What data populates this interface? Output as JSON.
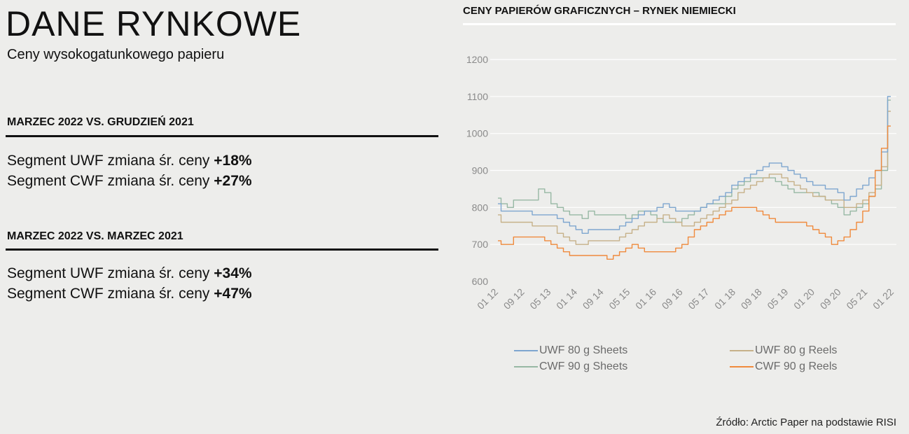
{
  "header": {
    "title": "DANE RYNKOWE",
    "subtitle": "Ceny wysokogatunkowego papieru"
  },
  "sections": [
    {
      "heading": "MARZEC 2022 VS. GRUDZIEŃ 2021",
      "stats": [
        {
          "label": "Segment UWF zmiana śr. ceny ",
          "value": "+18%"
        },
        {
          "label": "Segment CWF zmiana śr. ceny ",
          "value": "+27%"
        }
      ]
    },
    {
      "heading": "MARZEC 2022 VS. MARZEC 2021",
      "stats": [
        {
          "label": "Segment UWF zmiana śr. ceny ",
          "value": "+34%"
        },
        {
          "label": "Segment CWF zmiana śr. ceny ",
          "value": "+47%"
        }
      ]
    }
  ],
  "source": "Źródło: Arctic Paper na podstawie RISI",
  "chart_data": {
    "type": "line",
    "title": "CENY PAPIERÓW GRAFICZNYCH – RYNEK NIEMIECKI",
    "xlabel": "",
    "ylabel": "",
    "ylim": [
      600,
      1200
    ],
    "yticks": [
      600,
      700,
      800,
      900,
      1000,
      1100,
      1200
    ],
    "xticks": [
      "01 12",
      "09 12",
      "05 13",
      "01 14",
      "09 14",
      "05 15",
      "01 16",
      "09 16",
      "05 17",
      "01 18",
      "09 18",
      "05 19",
      "01 20",
      "09 20",
      "05 21",
      "01 22"
    ],
    "grid": "horizontal",
    "legend_position": "bottom",
    "series": [
      {
        "name": "UWF 80 g Sheets",
        "color": "#7ea6cf",
        "values": [
          810,
          790,
          790,
          790,
          790,
          790,
          780,
          780,
          780,
          780,
          770,
          760,
          750,
          740,
          730,
          740,
          740,
          740,
          740,
          740,
          750,
          760,
          770,
          780,
          790,
          790,
          800,
          810,
          800,
          790,
          790,
          790,
          790,
          800,
          810,
          820,
          830,
          840,
          860,
          870,
          880,
          890,
          900,
          910,
          920,
          920,
          910,
          900,
          890,
          880,
          870,
          860,
          860,
          850,
          850,
          840,
          820,
          830,
          850,
          860,
          880,
          900,
          950,
          1100
        ]
      },
      {
        "name": "UWF 80 g Reels",
        "color": "#c6b189",
        "values": [
          780,
          760,
          760,
          760,
          760,
          760,
          750,
          750,
          750,
          750,
          730,
          720,
          710,
          700,
          700,
          710,
          710,
          710,
          710,
          710,
          720,
          730,
          740,
          750,
          760,
          760,
          770,
          780,
          770,
          760,
          750,
          750,
          760,
          770,
          780,
          790,
          800,
          810,
          820,
          840,
          850,
          860,
          870,
          880,
          890,
          890,
          880,
          870,
          860,
          850,
          840,
          830,
          830,
          820,
          820,
          820,
          800,
          800,
          810,
          820,
          840,
          860,
          910,
          1060
        ]
      },
      {
        "name": "CWF 90 g Sheets",
        "color": "#97b8a4",
        "values": [
          825,
          810,
          800,
          820,
          820,
          820,
          820,
          850,
          840,
          810,
          800,
          790,
          780,
          780,
          770,
          790,
          780,
          780,
          780,
          780,
          780,
          770,
          780,
          790,
          790,
          780,
          770,
          760,
          760,
          760,
          770,
          780,
          790,
          800,
          810,
          810,
          810,
          830,
          850,
          860,
          870,
          880,
          880,
          880,
          880,
          870,
          860,
          850,
          840,
          840,
          840,
          840,
          830,
          820,
          810,
          800,
          780,
          790,
          800,
          810,
          830,
          850,
          900,
          1090
        ]
      },
      {
        "name": "CWF 90 g Reels",
        "color": "#f08a3c",
        "values": [
          710,
          700,
          700,
          720,
          720,
          720,
          720,
          720,
          710,
          700,
          690,
          680,
          670,
          670,
          670,
          670,
          670,
          670,
          660,
          670,
          680,
          690,
          700,
          690,
          680,
          680,
          680,
          680,
          680,
          690,
          700,
          720,
          740,
          750,
          760,
          770,
          780,
          790,
          800,
          800,
          800,
          800,
          790,
          780,
          770,
          760,
          760,
          760,
          760,
          760,
          750,
          740,
          730,
          720,
          700,
          710,
          720,
          740,
          760,
          790,
          830,
          900,
          960,
          1020
        ]
      }
    ]
  }
}
